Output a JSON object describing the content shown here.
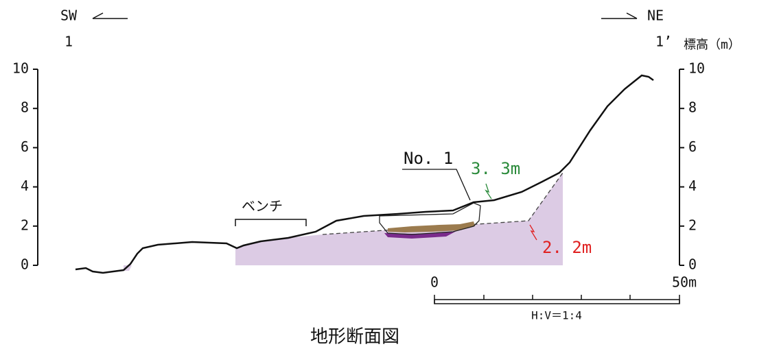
{
  "header": {
    "left_direction": "SW",
    "right_direction": "NE",
    "left_point": "1",
    "right_point": "1’",
    "axis_label": "標高（m）"
  },
  "axis": {
    "ylim": [
      0,
      10
    ],
    "ticks": [
      0,
      2,
      4,
      6,
      8,
      10
    ]
  },
  "annotations": {
    "bench": "ベンチ",
    "block": "No. 1",
    "green_label": "3. 3m",
    "red_label": "2. 2m"
  },
  "scale": {
    "start": "0",
    "end": "50m",
    "ratio": "H:V＝1:4"
  },
  "title": "地形断面図"
}
